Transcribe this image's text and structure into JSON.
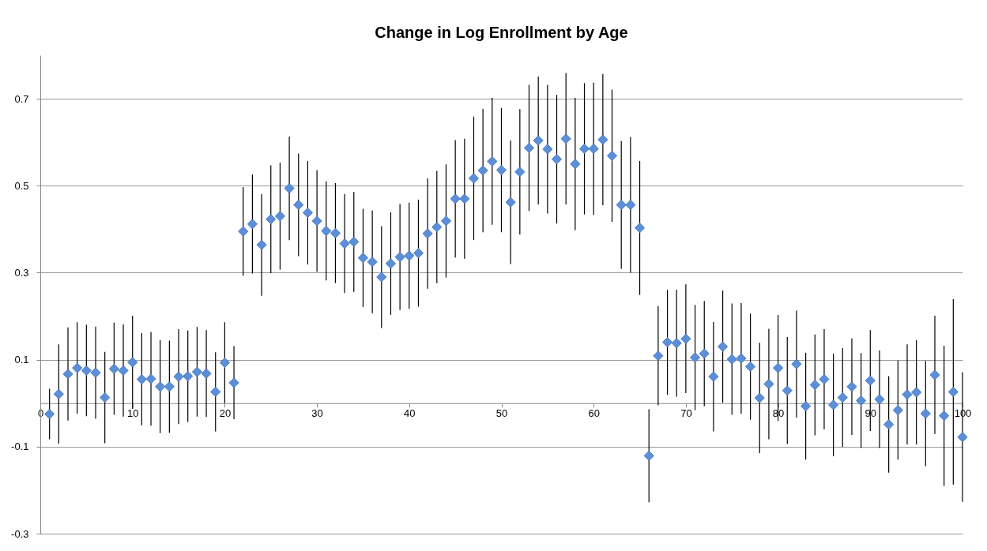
{
  "chart_data": {
    "type": "scatter",
    "title": "Change in Log Enrollment by Age",
    "x": [
      1,
      2,
      3,
      4,
      5,
      6,
      7,
      8,
      9,
      10,
      11,
      12,
      13,
      14,
      15,
      16,
      17,
      18,
      19,
      20,
      21,
      22,
      23,
      24,
      25,
      26,
      27,
      28,
      29,
      30,
      31,
      32,
      33,
      34,
      35,
      36,
      37,
      38,
      39,
      40,
      41,
      42,
      43,
      44,
      45,
      46,
      47,
      48,
      49,
      50,
      51,
      52,
      53,
      54,
      55,
      56,
      57,
      58,
      59,
      60,
      61,
      62,
      63,
      64,
      65,
      66,
      67,
      68,
      69,
      70,
      71,
      72,
      73,
      74,
      75,
      76,
      77,
      78,
      79,
      80,
      81,
      82,
      83,
      84,
      85,
      86,
      87,
      88,
      89,
      90,
      91,
      92,
      93,
      94,
      95,
      96,
      97,
      98,
      99,
      100
    ],
    "series": [
      {
        "color": "#5b8fd9",
        "values": [
          -0.025,
          0.021,
          0.067,
          0.081,
          0.075,
          0.07,
          0.013,
          0.079,
          0.075,
          0.094,
          0.055,
          0.056,
          0.038,
          0.038,
          0.061,
          0.062,
          0.072,
          0.068,
          0.026,
          0.093,
          0.047,
          0.395,
          0.412,
          0.364,
          0.423,
          0.43,
          0.494,
          0.456,
          0.438,
          0.419,
          0.396,
          0.391,
          0.367,
          0.371,
          0.334,
          0.325,
          0.29,
          0.321,
          0.336,
          0.339,
          0.345,
          0.39,
          0.405,
          0.419,
          0.47,
          0.47,
          0.517,
          0.535,
          0.556,
          0.536,
          0.462,
          0.532,
          0.587,
          0.604,
          0.584,
          0.561,
          0.608,
          0.55,
          0.585,
          0.585,
          0.606,
          0.569,
          0.456,
          0.456,
          0.403,
          -0.121,
          0.109,
          0.14,
          0.138,
          0.148,
          0.105,
          0.114,
          0.061,
          0.13,
          0.101,
          0.103,
          0.084,
          0.012,
          0.044,
          0.081,
          0.029,
          0.09,
          -0.007,
          0.042,
          0.055,
          -0.004,
          0.013,
          0.038,
          0.006,
          0.052,
          0.009,
          -0.049,
          -0.016,
          0.02,
          0.025,
          -0.024,
          0.065,
          -0.029,
          0.026,
          -0.078
        ],
        "errors": [
          0.058,
          0.114,
          0.107,
          0.105,
          0.105,
          0.106,
          0.105,
          0.106,
          0.106,
          0.107,
          0.106,
          0.108,
          0.107,
          0.106,
          0.109,
          0.105,
          0.103,
          0.1,
          0.091,
          0.093,
          0.084,
          0.102,
          0.114,
          0.117,
          0.124,
          0.123,
          0.119,
          0.118,
          0.119,
          0.117,
          0.114,
          0.115,
          0.114,
          0.115,
          0.113,
          0.118,
          0.117,
          0.118,
          0.122,
          0.122,
          0.123,
          0.127,
          0.129,
          0.13,
          0.135,
          0.138,
          0.142,
          0.142,
          0.146,
          0.143,
          0.142,
          0.144,
          0.145,
          0.147,
          0.148,
          0.148,
          0.151,
          0.152,
          0.151,
          0.152,
          0.151,
          0.152,
          0.147,
          0.156,
          0.154,
          0.107,
          0.114,
          0.121,
          0.123,
          0.125,
          0.121,
          0.121,
          0.126,
          0.129,
          0.128,
          0.127,
          0.122,
          0.127,
          0.127,
          0.122,
          0.123,
          0.123,
          0.123,
          0.116,
          0.115,
          0.118,
          0.114,
          0.111,
          0.109,
          0.116,
          0.112,
          0.111,
          0.114,
          0.115,
          0.12,
          0.121,
          0.136,
          0.161,
          0.213,
          0.149
        ]
      }
    ],
    "xlim": [
      0,
      100
    ],
    "xticks": [
      0,
      10,
      20,
      30,
      40,
      50,
      60,
      70,
      80,
      90,
      100
    ],
    "ylim": [
      -0.3,
      0.8
    ],
    "yticks": [
      -0.3,
      -0.1,
      0.1,
      0.3,
      0.5,
      0.7
    ],
    "grid": "y",
    "marker": "diamond"
  }
}
